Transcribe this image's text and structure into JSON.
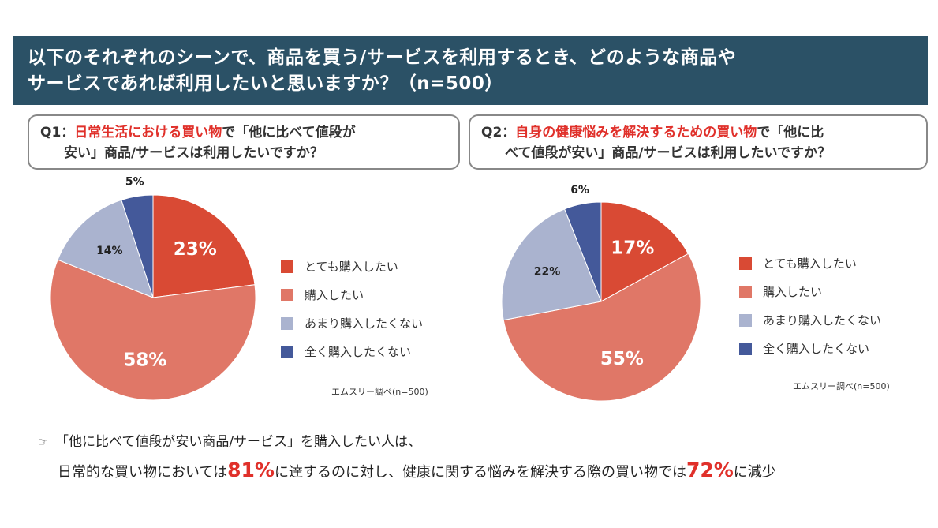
{
  "header": {
    "line1": "以下のそれぞれのシーンで、商品を買う/サービスを利用するとき、どのような商品や",
    "line2": "サービスであれば利用したいと思いますか？（n=500）"
  },
  "q1": {
    "prefix": "Q1：",
    "highlight": "日常生活における買い物",
    "mid": "で「他に比べて値段が",
    "line2": "安い」商品/サービスは利用したいですか？"
  },
  "q2": {
    "prefix": "Q2：",
    "highlight": "自身の健康悩みを解決するための買い物",
    "mid": "で「他に比",
    "line2": "べて値段が安い」商品/サービスは利用したいですか？"
  },
  "legend": [
    "とても購入したい",
    "購入したい",
    "あまり購入したくない",
    "全く購入したくない"
  ],
  "colors": [
    "#d94a34",
    "#e07767",
    "#aab3cf",
    "#44599a"
  ],
  "chart_data": [
    {
      "type": "pie",
      "categories": [
        "とても購入したい",
        "購入したい",
        "あまり購入したくない",
        "全く購入したくない"
      ],
      "values": [
        23,
        58,
        14,
        5
      ],
      "labels": [
        "23%",
        "58%",
        "14%",
        "5%"
      ],
      "legend_position": "right",
      "source": "エムスリー調べ(n=500)"
    },
    {
      "type": "pie",
      "categories": [
        "とても購入したい",
        "購入したい",
        "あまり購入したくない",
        "全く購入したくない"
      ],
      "values": [
        17,
        55,
        22,
        6
      ],
      "labels": [
        "17%",
        "55%",
        "22%",
        "6%"
      ],
      "legend_position": "right",
      "source": "エムスリー調べ(n=500)"
    }
  ],
  "summary": {
    "hand_icon": "☞",
    "line1": "「他に比べて値段が安い商品/サービス」を購入したい人は、",
    "line2_a": "日常的な買い物においては",
    "line2_b": "81%",
    "line2_c": "に達するのに対し、健康に関する悩みを解決する際の買い物では",
    "line2_d": "72%",
    "line2_e": "に減少"
  }
}
